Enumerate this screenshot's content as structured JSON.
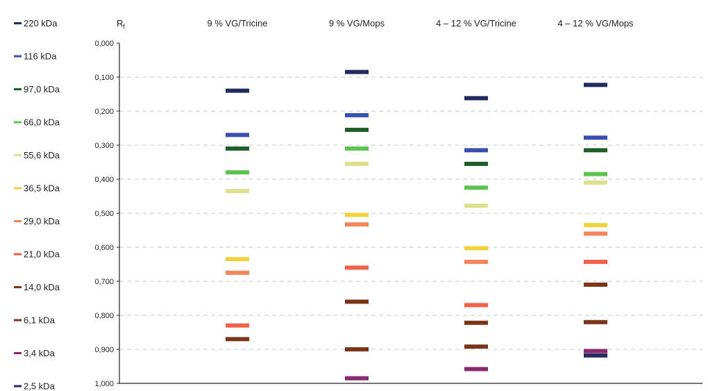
{
  "chart_data": {
    "type": "scatter",
    "ylabel": "Rf",
    "ylim": [
      0,
      1
    ],
    "y_ticks": [
      "0,000",
      "0,100",
      "0,200",
      "0,300",
      "0,400",
      "0,500",
      "0,600",
      "0,700",
      "0,800",
      "0,900",
      "1,000"
    ],
    "grid": "horizontal dashed",
    "legend_position": "left",
    "categories": [
      "9 % VG/Tricine",
      "9 % VG/Mops",
      "4 – 12 % VG/Tricine",
      "4 – 12 % VG/Mops"
    ],
    "series": [
      {
        "name": "220 kDa",
        "color": "#1f2a5e",
        "values": [
          0.14,
          0.085,
          0.162,
          0.123
        ]
      },
      {
        "name": "116 kDa",
        "color": "#3a4fb0",
        "values": [
          0.27,
          0.212,
          0.315,
          0.278
        ]
      },
      {
        "name": "97,0 kDa",
        "color": "#1e5e2a",
        "values": [
          0.31,
          0.255,
          0.355,
          0.315
        ]
      },
      {
        "name": "66,0 kDa",
        "color": "#5cc34e",
        "values": [
          0.38,
          0.31,
          0.425,
          0.385
        ]
      },
      {
        "name": "55,6 kDa",
        "color": "#dde08c",
        "values": [
          0.435,
          0.355,
          0.478,
          0.41
        ]
      },
      {
        "name": "36,5 kDa",
        "color": "#f0d23a",
        "values": [
          0.635,
          0.505,
          0.603,
          0.535
        ]
      },
      {
        "name": "29,0 kDa",
        "color": "#f4845a",
        "values": [
          0.675,
          0.533,
          0.643,
          0.56
        ]
      },
      {
        "name": "21,0 kDa",
        "color": "#f2604a",
        "values": [
          0.83,
          0.66,
          0.77,
          0.643
        ]
      },
      {
        "name": "14,0 kDa",
        "color": "#7a3418",
        "values": [
          0.87,
          0.76,
          0.822,
          0.71
        ]
      },
      {
        "name": "6,1 kDa",
        "color": "#7a3418",
        "values": [
          null,
          0.9,
          0.892,
          0.82
        ]
      },
      {
        "name": "3,4 kDa",
        "color": "#8a2a6e",
        "values": [
          null,
          0.985,
          0.958,
          0.905
        ]
      },
      {
        "name": "2,5 kDa",
        "color": "#2a2a60",
        "values": [
          null,
          null,
          null,
          0.918
        ]
      }
    ]
  }
}
